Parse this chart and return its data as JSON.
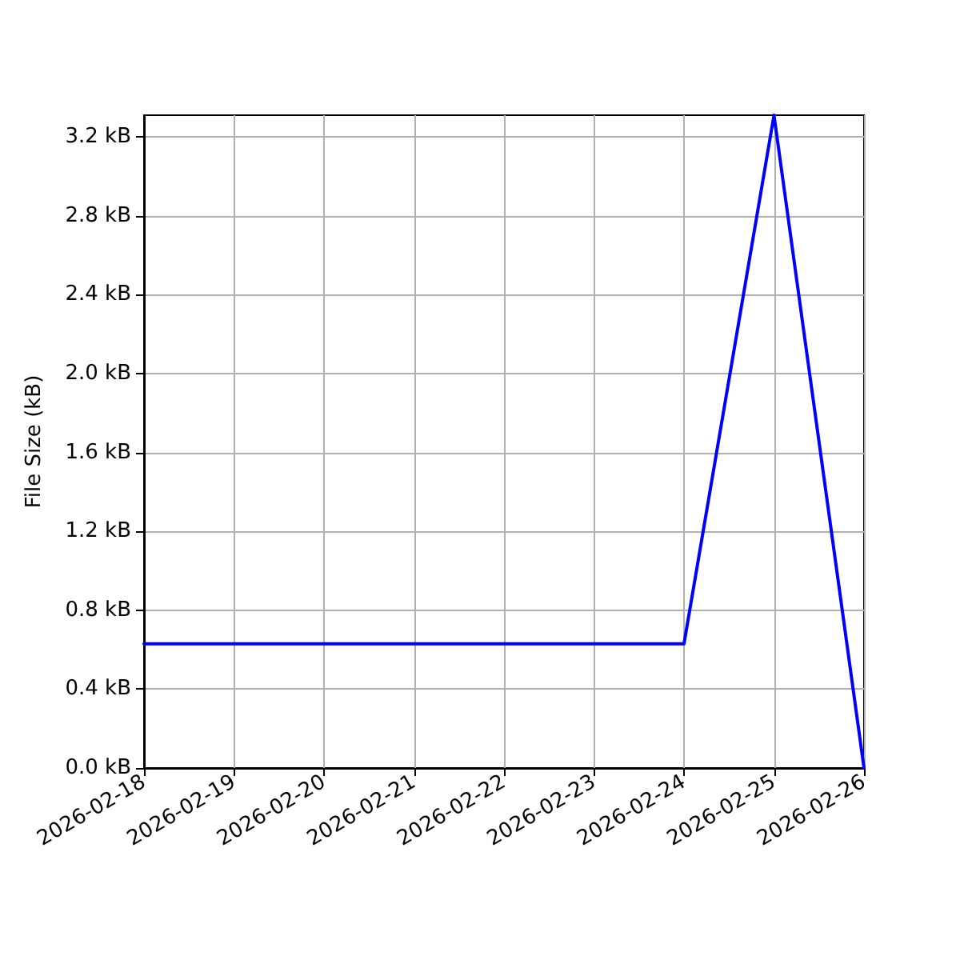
{
  "chart_data": {
    "type": "line",
    "ylabel": "File Size (kB)",
    "x": [
      "2026-02-18",
      "2026-02-19",
      "2026-02-20",
      "2026-02-21",
      "2026-02-22",
      "2026-02-23",
      "2026-02-24",
      "2026-02-25",
      "2026-02-26"
    ],
    "values": [
      0.63,
      0.63,
      0.63,
      0.63,
      0.63,
      0.63,
      0.63,
      3.31,
      0
    ],
    "color": "#0000ff",
    "xlim": [
      "2026-02-18",
      "2026-02-26"
    ],
    "xticks": [
      "2026-02-18",
      "2026-02-19",
      "2026-02-20",
      "2026-02-21",
      "2026-02-22",
      "2026-02-23",
      "2026-02-24",
      "2026-02-25",
      "2026-02-26"
    ],
    "ylim": [
      0,
      3.31
    ],
    "yticks": [
      {
        "value": 0,
        "label": "0.0 kB"
      },
      {
        "value": 0.4,
        "label": "0.4 kB"
      },
      {
        "value": 0.8,
        "label": "0.8 kB"
      },
      {
        "value": 1.2,
        "label": "1.2 kB"
      },
      {
        "value": 1.6,
        "label": "1.6 kB"
      },
      {
        "value": 2.0,
        "label": "2.0 kB"
      },
      {
        "value": 2.4,
        "label": "2.4 kB"
      },
      {
        "value": 2.8,
        "label": "2.8 kB"
      },
      {
        "value": 3.2,
        "label": "3.2 kB"
      }
    ],
    "grid": true,
    "marker": "none",
    "line_style": "solid"
  }
}
